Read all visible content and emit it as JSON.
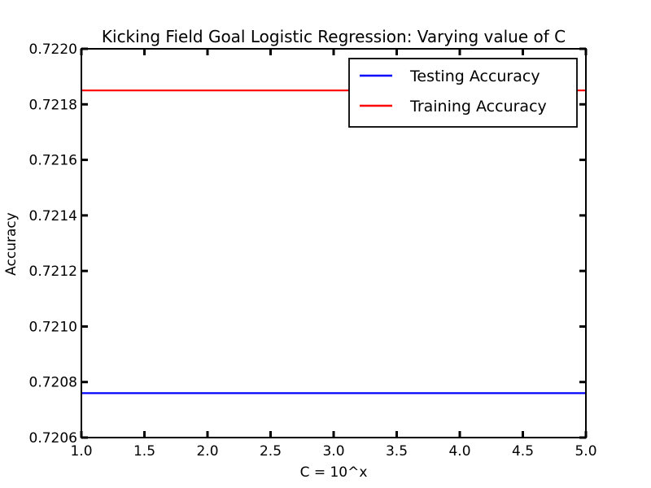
{
  "chart_data": {
    "type": "line",
    "title": "Kicking Field Goal Logistic Regression: Varying value of C",
    "xlabel": "C = 10^x",
    "ylabel": "Accuracy",
    "xlim": [
      1.0,
      5.0
    ],
    "ylim": [
      0.7206,
      0.722
    ],
    "xticks": [
      "1.0",
      "1.5",
      "2.0",
      "2.5",
      "3.0",
      "3.5",
      "4.0",
      "4.5",
      "5.0"
    ],
    "yticks": [
      "0.7206",
      "0.7208",
      "0.7210",
      "0.7212",
      "0.7214",
      "0.7216",
      "0.7218",
      "0.7220"
    ],
    "x": [
      1.0,
      1.5,
      2.0,
      2.5,
      3.0,
      3.5,
      4.0,
      4.5,
      5.0
    ],
    "series": [
      {
        "name": "Testing Accuracy",
        "color": "#0000ff",
        "values": [
          0.72076,
          0.72076,
          0.72076,
          0.72076,
          0.72076,
          0.72076,
          0.72076,
          0.72076,
          0.72076
        ]
      },
      {
        "name": "Training Accuracy",
        "color": "#ff0000",
        "values": [
          0.72185,
          0.72185,
          0.72185,
          0.72185,
          0.72185,
          0.72185,
          0.72185,
          0.72185,
          0.72185
        ]
      }
    ],
    "legend": "top-right",
    "grid": false
  }
}
